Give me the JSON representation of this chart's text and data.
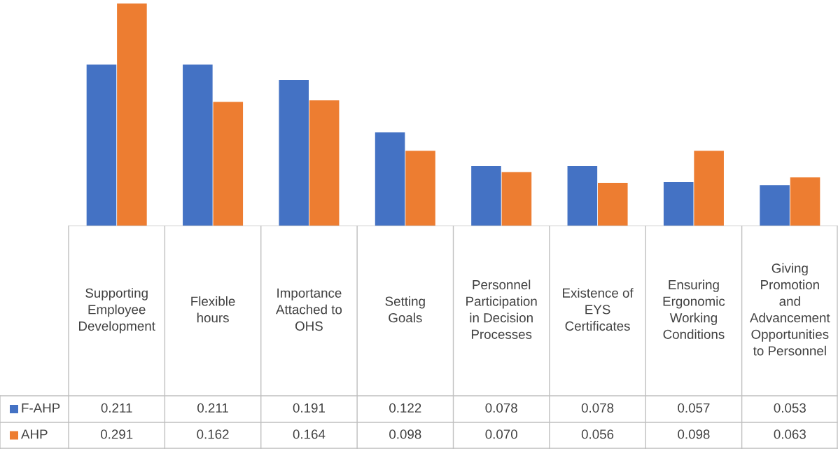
{
  "chart_data": {
    "type": "bar",
    "categories": [
      "Supporting Employee Development",
      "Flexible hours",
      "Importance Attached to OHS",
      "Setting Goals",
      "Personnel Participation in Decision Processes",
      "Existence of EYS Certificates",
      "Ensuring Ergonomic Working Conditions",
      "Giving Promotion and Advancement Opportunities to Personnel"
    ],
    "series": [
      {
        "name": "F-AHP",
        "color": "#4472c4",
        "values": [
          0.211,
          0.211,
          0.191,
          0.122,
          0.078,
          0.078,
          0.057,
          0.053
        ],
        "value_labels": [
          "0.211",
          "0.211",
          "0.191",
          "0.122",
          "0.078",
          "0.078",
          "0.057",
          "0.053"
        ]
      },
      {
        "name": "AHP",
        "color": "#ed7d31",
        "values": [
          0.291,
          0.162,
          0.164,
          0.098,
          0.07,
          0.056,
          0.098,
          0.063
        ],
        "value_labels": [
          "0.291",
          "0.162",
          "0.164",
          "0.098",
          "0.070",
          "0.056",
          "0.098",
          "0.063"
        ]
      }
    ],
    "legend": "bottom"
  }
}
